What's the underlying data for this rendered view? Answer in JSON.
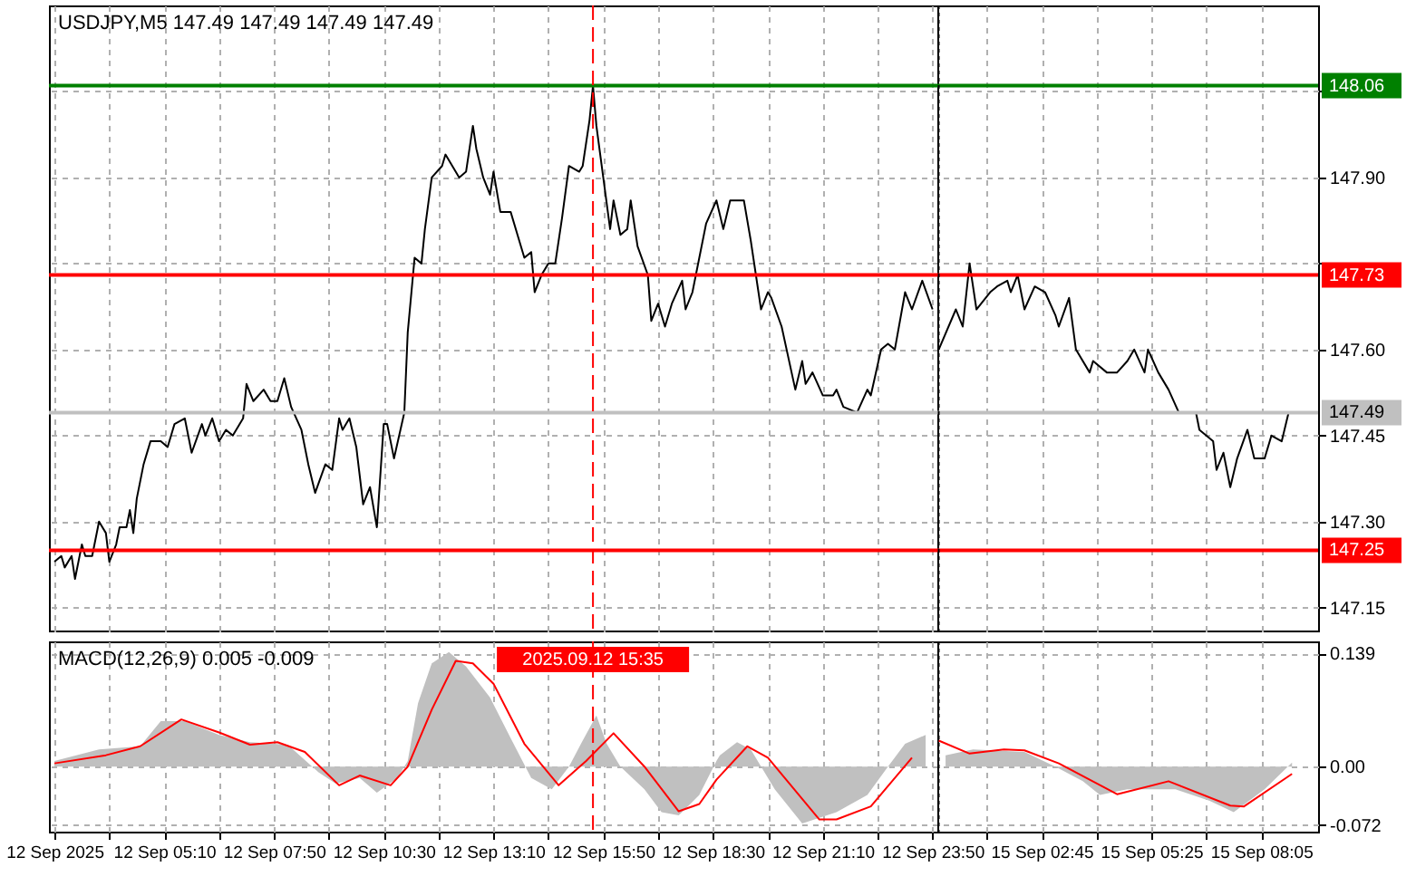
{
  "chart_data": [
    {
      "type": "line",
      "title": "USDJPY,M5  147.49 147.49 147.49 147.49",
      "color": "#000000",
      "x": [
        "2025-09-12T02:30",
        "2025-09-12T02:40",
        "2025-09-12T02:45",
        "2025-09-12T02:55",
        "2025-09-12T03:00",
        "2025-09-12T03:10",
        "2025-09-12T03:15",
        "2025-09-12T03:25",
        "2025-09-12T03:35",
        "2025-09-12T03:45",
        "2025-09-12T03:50",
        "2025-09-12T04:00",
        "2025-09-12T04:05",
        "2025-09-12T04:15",
        "2025-09-12T04:20",
        "2025-09-12T04:25",
        "2025-09-12T04:30",
        "2025-09-12T04:40",
        "2025-09-12T04:50",
        "2025-09-12T05:05",
        "2025-09-12T05:15",
        "2025-09-12T05:25",
        "2025-09-12T05:40",
        "2025-09-12T05:50",
        "2025-09-12T06:05",
        "2025-09-12T06:10",
        "2025-09-12T06:20",
        "2025-09-12T06:30",
        "2025-09-12T06:40",
        "2025-09-12T06:50",
        "2025-09-12T07:05",
        "2025-09-12T07:10",
        "2025-09-12T07:20",
        "2025-09-12T07:35",
        "2025-09-12T07:45",
        "2025-09-12T07:55",
        "2025-09-12T08:05",
        "2025-09-12T08:15",
        "2025-09-12T08:30",
        "2025-09-12T08:40",
        "2025-09-12T08:50",
        "2025-09-12T09:05",
        "2025-09-12T09:15",
        "2025-09-12T09:25",
        "2025-09-12T09:30",
        "2025-09-12T09:40",
        "2025-09-12T09:50",
        "2025-09-12T10:00",
        "2025-09-12T10:10",
        "2025-09-12T10:20",
        "2025-09-12T10:30",
        "2025-09-12T10:35",
        "2025-09-12T10:45",
        "2025-09-12T11:00",
        "2025-09-12T11:05",
        "2025-09-12T11:15",
        "2025-09-12T11:25",
        "2025-09-12T11:30",
        "2025-09-12T11:40",
        "2025-09-12T11:55",
        "2025-09-12T12:00",
        "2025-09-12T12:20",
        "2025-09-12T12:30",
        "2025-09-12T12:40",
        "2025-09-12T12:45",
        "2025-09-12T12:55",
        "2025-09-12T13:05",
        "2025-09-12T13:10",
        "2025-09-12T13:20",
        "2025-09-12T13:35",
        "2025-09-12T13:45",
        "2025-09-12T13:55",
        "2025-09-12T14:05",
        "2025-09-12T14:10",
        "2025-09-12T14:20",
        "2025-09-12T14:30",
        "2025-09-12T14:40",
        "2025-09-12T14:50",
        "2025-09-12T15:00",
        "2025-09-12T15:15",
        "2025-09-12T15:20",
        "2025-09-12T15:30",
        "2025-09-12T15:35",
        "2025-09-12T15:40",
        "2025-09-12T15:50",
        "2025-09-12T16:00",
        "2025-09-12T16:05",
        "2025-09-12T16:15",
        "2025-09-12T16:25",
        "2025-09-12T16:30",
        "2025-09-12T16:40",
        "2025-09-12T16:55",
        "2025-09-12T17:00",
        "2025-09-12T17:10",
        "2025-09-12T17:20",
        "2025-09-12T17:30",
        "2025-09-12T17:45",
        "2025-09-12T17:50",
        "2025-09-12T18:00",
        "2025-09-12T18:10",
        "2025-09-12T18:20",
        "2025-09-12T18:35",
        "2025-09-12T18:45",
        "2025-09-12T18:55",
        "2025-09-12T19:15",
        "2025-09-12T19:25",
        "2025-09-12T19:40",
        "2025-09-12T19:50",
        "2025-09-12T19:55",
        "2025-09-12T20:10",
        "2025-09-12T20:30",
        "2025-09-12T20:40",
        "2025-09-12T20:45",
        "2025-09-12T20:55",
        "2025-09-12T21:10",
        "2025-09-12T21:25",
        "2025-09-12T21:30",
        "2025-09-12T21:40",
        "2025-09-12T22:00",
        "2025-09-12T22:15",
        "2025-09-12T22:20",
        "2025-09-12T22:35",
        "2025-09-12T22:45",
        "2025-09-12T22:55",
        "2025-09-12T23:10",
        "2025-09-12T23:20",
        "2025-09-12T23:35",
        "2025-09-12T23:50"
      ],
      "values": [
        147.23,
        147.24,
        147.22,
        147.24,
        147.2,
        147.26,
        147.24,
        147.24,
        147.3,
        147.28,
        147.23,
        147.26,
        147.29,
        147.29,
        147.32,
        147.28,
        147.34,
        147.4,
        147.44,
        147.44,
        147.43,
        147.47,
        147.48,
        147.42,
        147.47,
        147.45,
        147.48,
        147.44,
        147.46,
        147.45,
        147.48,
        147.54,
        147.51,
        147.53,
        147.51,
        147.51,
        147.55,
        147.5,
        147.46,
        147.4,
        147.35,
        147.4,
        147.39,
        147.48,
        147.46,
        147.48,
        147.43,
        147.33,
        147.36,
        147.29,
        147.47,
        147.47,
        147.41,
        147.49,
        147.63,
        147.76,
        147.75,
        147.81,
        147.9,
        147.92,
        147.94,
        147.9,
        147.91,
        147.99,
        147.95,
        147.9,
        147.87,
        147.91,
        147.84,
        147.84,
        147.8,
        147.76,
        147.77,
        147.7,
        147.73,
        147.75,
        147.75,
        147.83,
        147.92,
        147.91,
        147.92,
        148.0,
        148.06,
        147.99,
        147.9,
        147.81,
        147.86,
        147.8,
        147.81,
        147.86,
        147.78,
        147.73,
        147.65,
        147.68,
        147.64,
        147.68,
        147.72,
        147.67,
        147.7,
        147.76,
        147.82,
        147.86,
        147.81,
        147.86,
        147.86,
        147.79,
        147.67,
        147.7,
        147.69,
        147.64,
        147.53,
        147.58,
        147.54,
        147.56,
        147.52,
        147.52,
        147.53,
        147.5,
        147.49,
        147.53,
        147.52,
        147.6,
        147.61,
        147.6,
        147.7,
        147.67,
        147.72,
        147.67
      ],
      "xlim": [
        "2025-09-12T02:22",
        "2025-09-12T23:57"
      ],
      "ylim": [
        147.11,
        148.2
      ],
      "xticks": [
        "2025-09-12T02:30",
        "2025-09-12T03:50",
        "2025-09-12T05:10",
        "2025-09-12T06:30",
        "2025-09-12T07:50",
        "2025-09-12T09:10",
        "2025-09-12T10:30",
        "2025-09-12T11:50",
        "2025-09-12T13:10",
        "2025-09-12T14:30",
        "2025-09-12T15:50",
        "2025-09-12T17:10",
        "2025-09-12T18:30",
        "2025-09-12T19:50",
        "2025-09-12T21:10",
        "2025-09-12T22:30",
        "2025-09-12T23:50"
      ],
      "yticks": [
        147.15,
        147.3,
        147.45,
        147.6,
        147.75,
        147.9,
        148.05
      ],
      "tick_labels": false,
      "grid": true,
      "ref_lines": [
        {
          "axis": "y",
          "value": 148.06,
          "label": null,
          "color": "#008000"
        },
        {
          "axis": "y",
          "value": 147.73,
          "label": null,
          "color": "#ff0000"
        },
        {
          "axis": "y",
          "value": 147.25,
          "label": null,
          "color": "#ff0000"
        },
        {
          "axis": "y",
          "value": 147.49,
          "label": null,
          "color": "#c0c0c0"
        },
        {
          "axis": "x",
          "value": "2025-09-12T15:35",
          "label": null,
          "color": "#ff0000",
          "line_style": "dashed"
        }
      ]
    },
    {
      "type": "line",
      "color": "#000000",
      "x": [
        "2025-09-15T00:15",
        "2025-09-15T00:40",
        "2025-09-15T00:50",
        "2025-09-15T01:00",
        "2025-09-15T01:10",
        "2025-09-15T01:30",
        "2025-09-15T01:40",
        "2025-09-15T01:55",
        "2025-09-15T02:00",
        "2025-09-15T02:10",
        "2025-09-15T02:20",
        "2025-09-15T02:35",
        "2025-09-15T02:50",
        "2025-09-15T03:05",
        "2025-09-15T03:10",
        "2025-09-15T03:25",
        "2025-09-15T03:35",
        "2025-09-15T03:55",
        "2025-09-15T04:00",
        "2025-09-15T04:20",
        "2025-09-15T04:35",
        "2025-09-15T04:50",
        "2025-09-15T05:00",
        "2025-09-15T05:15",
        "2025-09-15T05:20",
        "2025-09-15T05:35",
        "2025-09-15T05:50",
        "2025-09-15T06:05",
        "2025-09-15T06:30",
        "2025-09-15T06:35",
        "2025-09-15T06:55",
        "2025-09-15T07:00",
        "2025-09-15T07:10",
        "2025-09-15T07:20",
        "2025-09-15T07:30",
        "2025-09-15T07:45",
        "2025-09-15T07:55",
        "2025-09-15T08:10",
        "2025-09-15T08:20",
        "2025-09-15T08:35",
        "2025-09-15T08:45",
        "2025-09-15T08:50"
      ],
      "values": [
        147.6,
        147.67,
        147.64,
        147.75,
        147.67,
        147.7,
        147.71,
        147.72,
        147.7,
        147.73,
        147.67,
        147.71,
        147.7,
        147.66,
        147.64,
        147.69,
        147.6,
        147.56,
        147.58,
        147.56,
        147.56,
        147.58,
        147.6,
        147.56,
        147.6,
        147.56,
        147.53,
        147.49,
        147.49,
        147.46,
        147.44,
        147.39,
        147.42,
        147.36,
        147.41,
        147.46,
        147.41,
        147.41,
        147.45,
        147.44,
        147.49,
        147.49
      ],
      "xlim": [
        "2025-09-15T00:13",
        "2025-09-15T09:28"
      ],
      "ylim": [
        147.11,
        148.2
      ],
      "xticks": [
        "2025-09-15T01:25",
        "2025-09-15T02:45",
        "2025-09-15T04:05",
        "2025-09-15T05:25",
        "2025-09-15T06:45",
        "2025-09-15T08:05"
      ],
      "yticks": [
        {
          "value": 147.15,
          "label": "147.15"
        },
        {
          "value": 147.3,
          "label": "147.30"
        },
        {
          "value": 147.45,
          "label": "147.45"
        },
        {
          "value": 147.6,
          "label": "147.60"
        },
        {
          "value": 147.75,
          "label": null
        },
        {
          "value": 147.9,
          "label": "147.90"
        },
        {
          "value": 148.05,
          "label": null
        }
      ],
      "tick_labels": "y",
      "grid": true,
      "ref_lines": [
        {
          "axis": "y",
          "value": 148.06,
          "label": "148.06",
          "color": "#008000"
        },
        {
          "axis": "y",
          "value": 147.73,
          "label": "147.73",
          "color": "#ff0000"
        },
        {
          "axis": "y",
          "value": 147.25,
          "label": "147.25",
          "color": "#ff0000"
        },
        {
          "axis": "y",
          "value": 147.49,
          "label": "147.49",
          "color": "#c0c0c0"
        },
        {
          "axis": "x",
          "value": "2025-09-15T00:15",
          "label": null,
          "color": "#000000",
          "line_style": "dotted"
        }
      ]
    },
    {
      "type": "line",
      "title": "MACD(12,26,9) 0.005 -0.009",
      "series": [
        {
          "type": "area",
          "color": "#c0c0c0",
          "x": [
            "2025-09-12T02:30",
            "2025-09-12T03:35",
            "2025-09-12T04:35",
            "2025-09-12T05:05",
            "2025-09-12T05:40",
            "2025-09-12T06:30",
            "2025-09-12T07:15",
            "2025-09-12T08:10",
            "2025-09-12T08:55",
            "2025-09-12T09:20",
            "2025-09-12T09:55",
            "2025-09-12T10:20",
            "2025-09-12T10:50",
            "2025-09-12T11:05",
            "2025-09-12T11:20",
            "2025-09-12T11:40",
            "2025-09-12T12:05",
            "2025-09-12T12:30",
            "2025-09-12T13:05",
            "2025-09-12T13:35",
            "2025-09-12T14:05",
            "2025-09-12T14:35",
            "2025-09-12T15:00",
            "2025-09-12T15:20",
            "2025-09-12T15:40",
            "2025-09-12T15:55",
            "2025-09-12T16:15",
            "2025-09-12T16:50",
            "2025-09-12T17:15",
            "2025-09-12T17:40",
            "2025-09-12T18:10",
            "2025-09-12T18:35",
            "2025-09-12T18:40",
            "2025-09-12T19:05",
            "2025-09-12T19:25",
            "2025-09-12T20:00",
            "2025-09-12T20:40",
            "2025-09-12T21:30",
            "2025-09-12T22:15",
            "2025-09-12T22:45",
            "2025-09-12T23:10",
            "2025-09-12T23:40"
          ],
          "values": [
            0.007,
            0.021,
            0.025,
            0.056,
            0.056,
            0.039,
            0.03,
            0.027,
            -0.007,
            -0.021,
            -0.014,
            -0.032,
            -0.014,
            0.007,
            0.078,
            0.127,
            0.141,
            0.123,
            0.085,
            0.035,
            -0.014,
            -0.028,
            0,
            0.032,
            0.063,
            0.028,
            0,
            -0.028,
            -0.056,
            -0.06,
            -0.035,
            0.007,
            0.014,
            0.03,
            0.021,
            -0.028,
            -0.07,
            -0.056,
            -0.035,
            0,
            0.028,
            0.039
          ]
        },
        {
          "type": "line",
          "color": "#ff0000",
          "x": [
            "2025-09-12T02:30",
            "2025-09-12T03:45",
            "2025-09-12T04:35",
            "2025-09-12T05:35",
            "2025-09-12T06:30",
            "2025-09-12T07:15",
            "2025-09-12T07:55",
            "2025-09-12T08:35",
            "2025-09-12T09:25",
            "2025-09-12T09:55",
            "2025-09-12T10:40",
            "2025-09-12T11:05",
            "2025-09-12T11:40",
            "2025-09-12T12:15",
            "2025-09-12T12:40",
            "2025-09-12T13:10",
            "2025-09-12T13:55",
            "2025-09-12T14:45",
            "2025-09-12T15:25",
            "2025-09-12T16:05",
            "2025-09-12T16:50",
            "2025-09-12T17:40",
            "2025-09-12T18:10",
            "2025-09-12T18:35",
            "2025-09-12T19:20",
            "2025-09-12T19:50",
            "2025-09-12T21:05",
            "2025-09-12T21:30",
            "2025-09-12T22:20",
            "2025-09-12T23:20"
          ],
          "values": [
            0.004,
            0.014,
            0.025,
            0.058,
            0.042,
            0.027,
            0.03,
            0.018,
            -0.023,
            -0.011,
            -0.023,
            0,
            0.07,
            0.13,
            0.127,
            0.102,
            0.028,
            -0.023,
            0.007,
            0.041,
            0,
            -0.055,
            -0.046,
            -0.016,
            0.025,
            0.011,
            -0.065,
            -0.065,
            -0.049,
            0.011
          ]
        }
      ],
      "xlim": [
        "2025-09-12T02:22",
        "2025-09-12T23:57"
      ],
      "ylim": [
        -0.08,
        0.154
      ],
      "xticks": [
        {
          "value": "2025-09-12T02:30",
          "label": "12 Sep 2025"
        },
        {
          "value": "2025-09-12T03:50",
          "label": null
        },
        {
          "value": "2025-09-12T05:10",
          "label": "12 Sep 05:10"
        },
        {
          "value": "2025-09-12T06:30",
          "label": null
        },
        {
          "value": "2025-09-12T07:50",
          "label": "12 Sep 07:50"
        },
        {
          "value": "2025-09-12T09:10",
          "label": null
        },
        {
          "value": "2025-09-12T10:30",
          "label": "12 Sep 10:30"
        },
        {
          "value": "2025-09-12T11:50",
          "label": null
        },
        {
          "value": "2025-09-12T13:10",
          "label": "12 Sep 13:10"
        },
        {
          "value": "2025-09-12T14:30",
          "label": null
        },
        {
          "value": "2025-09-12T15:50",
          "label": "12 Sep 15:50"
        },
        {
          "value": "2025-09-12T17:10",
          "label": null
        },
        {
          "value": "2025-09-12T18:30",
          "label": "12 Sep 18:30"
        },
        {
          "value": "2025-09-12T19:50",
          "label": null
        },
        {
          "value": "2025-09-12T21:10",
          "label": "12 Sep 21:10"
        },
        {
          "value": "2025-09-12T22:30",
          "label": null
        },
        {
          "value": "2025-09-12T23:50",
          "label": "12 Sep 23:50"
        }
      ],
      "yticks": [
        -0.072,
        0,
        0.139
      ],
      "tick_labels": "x",
      "grid": true,
      "ref_lines": [
        {
          "axis": "x",
          "value": "2025-09-12T15:35",
          "label": "2025.09.12 15:35",
          "color": "#ff0000",
          "line_style": "dashed"
        }
      ]
    },
    {
      "type": "line",
      "series": [
        {
          "type": "area",
          "color": "#c0c0c0",
          "x": [
            "2025-09-15T00:25",
            "2025-09-15T01:05",
            "2025-09-15T02:20",
            "2025-09-15T03:05",
            "2025-09-15T03:45",
            "2025-09-15T04:10",
            "2025-09-15T04:50",
            "2025-09-15T06:00",
            "2025-09-15T06:50",
            "2025-09-15T07:25",
            "2025-09-15T08:10",
            "2025-09-15T08:50"
          ],
          "values": [
            0.014,
            0.021,
            0.018,
            0,
            -0.018,
            -0.035,
            -0.028,
            -0.028,
            -0.042,
            -0.056,
            -0.028,
            0.005
          ]
        },
        {
          "type": "line",
          "color": "#ff0000",
          "x": [
            "2025-09-15T00:15",
            "2025-09-15T01:00",
            "2025-09-15T01:50",
            "2025-09-15T02:20",
            "2025-09-15T03:10",
            "2025-09-15T04:35",
            "2025-09-15T05:50",
            "2025-09-15T07:20",
            "2025-09-15T07:40",
            "2025-09-15T08:50"
          ],
          "values": [
            0.032,
            0.016,
            0.021,
            0.02,
            0.004,
            -0.034,
            -0.018,
            -0.048,
            -0.049,
            -0.009
          ]
        }
      ],
      "xlim": [
        "2025-09-15T00:13",
        "2025-09-15T09:28"
      ],
      "ylim": [
        -0.08,
        0.154
      ],
      "xticks": [
        {
          "value": "2025-09-15T01:25",
          "label": null
        },
        {
          "value": "2025-09-15T02:45",
          "label": "15 Sep 02:45"
        },
        {
          "value": "2025-09-15T04:05",
          "label": null
        },
        {
          "value": "2025-09-15T05:25",
          "label": "15 Sep 05:25"
        },
        {
          "value": "2025-09-15T06:45",
          "label": null
        },
        {
          "value": "2025-09-15T08:05",
          "label": "15 Sep 08:05"
        }
      ],
      "yticks": [
        -0.072,
        {
          "value": 0,
          "label": "0.00"
        },
        0.139
      ],
      "grid": true,
      "ref_lines": [
        {
          "axis": "x",
          "value": "2025-09-15T00:15",
          "label": null,
          "color": "#000000",
          "line_style": "dotted"
        }
      ]
    }
  ]
}
